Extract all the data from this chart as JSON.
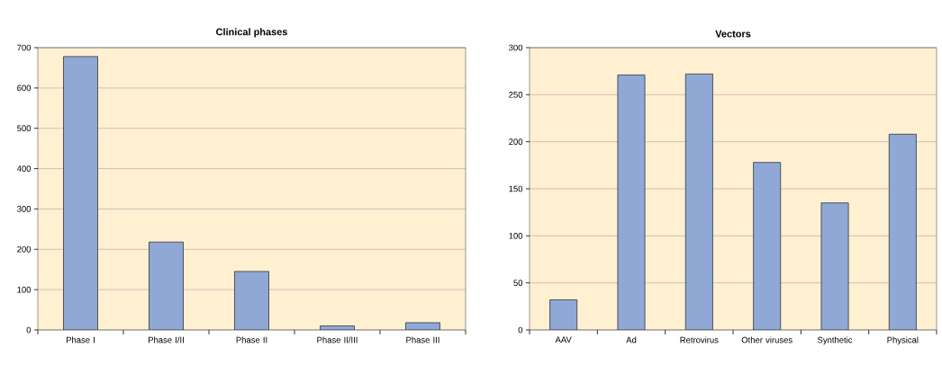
{
  "chart_data": [
    {
      "type": "bar",
      "title": "Clinical phases",
      "categories": [
        "Phase I",
        "Phase I/II",
        "Phase II",
        "Phase II/III",
        "Phase III"
      ],
      "values": [
        678,
        218,
        145,
        10,
        18
      ],
      "color": "#8fa8d6",
      "ylim": [
        0,
        700
      ],
      "yticks": [
        0,
        100,
        200,
        300,
        400,
        500,
        600,
        700
      ],
      "grid": "y"
    },
    {
      "type": "bar",
      "title": "Vectors",
      "categories": [
        "AAV",
        "Ad",
        "Retrovirus",
        "Other viruses",
        "Synthetic",
        "Physical"
      ],
      "values": [
        32,
        271,
        272,
        178,
        135,
        208
      ],
      "color": "#8fa8d6",
      "ylim": [
        0,
        300
      ],
      "yticks": [
        0,
        50,
        100,
        150,
        200,
        250,
        300
      ],
      "grid": "y"
    }
  ]
}
